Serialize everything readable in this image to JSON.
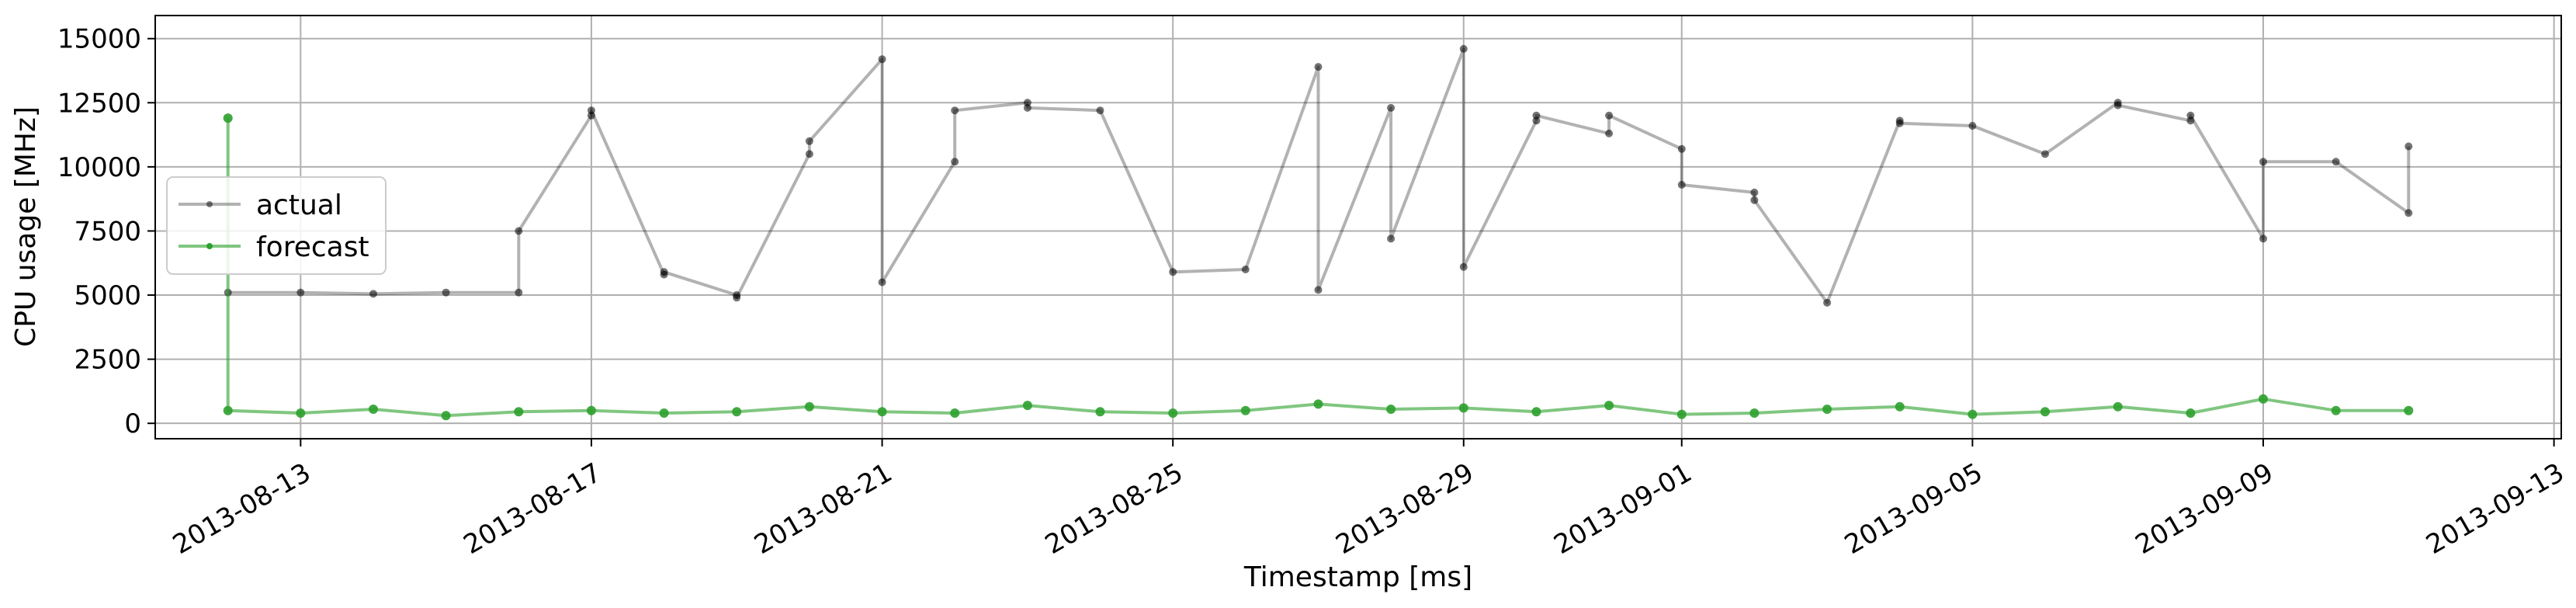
{
  "chart_data": {
    "type": "line",
    "xlabel": "Timestamp [ms]",
    "ylabel": "CPU usage [MHz]",
    "xlim": [
      "2013-08-11",
      "2013-09-13"
    ],
    "ylim": [
      -600,
      15900
    ],
    "grid": true,
    "legend_position": "center-left",
    "x_ticks": [
      "2013-08-13",
      "2013-08-17",
      "2013-08-21",
      "2013-08-25",
      "2013-08-29",
      "2013-09-01",
      "2013-09-05",
      "2013-09-09",
      "2013-09-13"
    ],
    "y_ticks": [
      0,
      2500,
      5000,
      7500,
      10000,
      12500,
      15000
    ],
    "series": [
      {
        "name": "actual",
        "color": "#000000",
        "x": [
          "2013-08-12",
          "2013-08-13",
          "2013-08-14",
          "2013-08-15",
          "2013-08-16",
          "2013-08-16",
          "2013-08-17",
          "2013-08-17",
          "2013-08-18",
          "2013-08-18",
          "2013-08-19",
          "2013-08-19",
          "2013-08-20",
          "2013-08-20",
          "2013-08-21",
          "2013-08-21",
          "2013-08-22",
          "2013-08-22",
          "2013-08-23",
          "2013-08-23",
          "2013-08-24",
          "2013-08-25",
          "2013-08-26",
          "2013-08-27",
          "2013-08-27",
          "2013-08-28",
          "2013-08-28",
          "2013-08-29",
          "2013-08-29",
          "2013-08-30",
          "2013-08-30",
          "2013-08-31",
          "2013-08-31",
          "2013-09-01",
          "2013-09-01",
          "2013-09-02",
          "2013-09-02",
          "2013-09-03",
          "2013-09-04",
          "2013-09-04",
          "2013-09-05",
          "2013-09-06",
          "2013-09-07",
          "2013-09-07",
          "2013-09-08",
          "2013-09-08",
          "2013-09-09",
          "2013-09-09",
          "2013-09-10",
          "2013-09-11",
          "2013-09-11"
        ],
        "y": [
          5100,
          5100,
          5050,
          5100,
          5100,
          7500,
          12000,
          12200,
          5800,
          5900,
          5000,
          4900,
          10500,
          11000,
          14200,
          5500,
          10200,
          12200,
          12500,
          12300,
          12200,
          5900,
          6000,
          13900,
          5200,
          12300,
          7200,
          14600,
          6100,
          11800,
          12000,
          11300,
          12000,
          10700,
          9300,
          9000,
          8700,
          4700,
          11800,
          11700,
          11600,
          10500,
          12500,
          12400,
          11800,
          12000,
          7200,
          10200,
          10200,
          8200,
          10800
        ]
      },
      {
        "name": "forecast",
        "color": "#2ca02c",
        "x": [
          "2013-08-12",
          "2013-08-12",
          "2013-08-13",
          "2013-08-14",
          "2013-08-15",
          "2013-08-16",
          "2013-08-17",
          "2013-08-18",
          "2013-08-19",
          "2013-08-20",
          "2013-08-21",
          "2013-08-22",
          "2013-08-23",
          "2013-08-24",
          "2013-08-25",
          "2013-08-26",
          "2013-08-27",
          "2013-08-28",
          "2013-08-29",
          "2013-08-30",
          "2013-08-31",
          "2013-09-01",
          "2013-09-02",
          "2013-09-03",
          "2013-09-04",
          "2013-09-05",
          "2013-09-06",
          "2013-09-07",
          "2013-09-08",
          "2013-09-09",
          "2013-09-10",
          "2013-09-11"
        ],
        "y": [
          11900,
          500,
          400,
          550,
          300,
          450,
          500,
          400,
          450,
          650,
          450,
          400,
          700,
          450,
          400,
          500,
          750,
          550,
          600,
          450,
          700,
          350,
          400,
          550,
          650,
          350,
          450,
          650,
          400,
          950,
          500,
          500
        ]
      }
    ]
  }
}
